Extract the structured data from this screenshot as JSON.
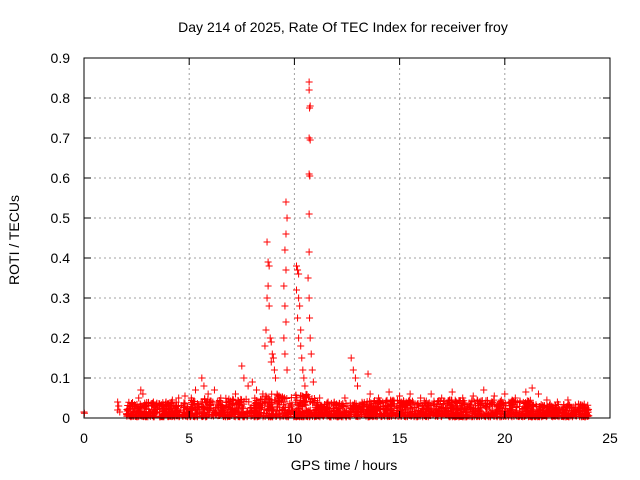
{
  "chart_data": {
    "type": "scatter",
    "title": "Day 214 of 2025, Rate Of TEC Index for receiver froy",
    "xlabel": "GPS time / hours",
    "ylabel": "ROTI / TECUs",
    "xlim": [
      0,
      25
    ],
    "ylim": [
      0,
      0.9
    ],
    "xticks": [
      0,
      5,
      10,
      15,
      20,
      25
    ],
    "yticks": [
      0,
      0.1,
      0.2,
      0.3,
      0.4,
      0.5,
      0.6,
      0.7,
      0.8,
      0.9
    ],
    "xtick_labels": [
      "0",
      "5",
      "10",
      "15",
      "20",
      "25"
    ],
    "ytick_labels": [
      "0",
      "0.1",
      "0.2",
      "0.3",
      "0.4",
      "0.5",
      "0.6",
      "0.7",
      "0.8",
      "0.9"
    ],
    "grid": true,
    "marker": "+",
    "color": "#ff0000",
    "series": [
      {
        "name": "ROTI",
        "points": [
          [
            0.0,
            0.015
          ],
          [
            0.02,
            0.012
          ],
          [
            1.6,
            0.04
          ],
          [
            1.6,
            0.02
          ],
          [
            1.65,
            0.03
          ],
          [
            1.7,
            0.015
          ],
          [
            2.1,
            0.02
          ],
          [
            2.2,
            0.03
          ],
          [
            2.5,
            0.025
          ],
          [
            2.6,
            0.05
          ],
          [
            2.7,
            0.07
          ],
          [
            2.8,
            0.06
          ],
          [
            3.0,
            0.03
          ],
          [
            3.3,
            0.04
          ],
          [
            3.6,
            0.035
          ],
          [
            3.9,
            0.04
          ],
          [
            4.2,
            0.045
          ],
          [
            4.5,
            0.05
          ],
          [
            4.8,
            0.055
          ],
          [
            5.1,
            0.05
          ],
          [
            5.3,
            0.07
          ],
          [
            5.6,
            0.1
          ],
          [
            5.7,
            0.08
          ],
          [
            5.9,
            0.06
          ],
          [
            6.2,
            0.07
          ],
          [
            6.5,
            0.05
          ],
          [
            6.9,
            0.04
          ],
          [
            7.2,
            0.06
          ],
          [
            7.5,
            0.13
          ],
          [
            7.6,
            0.1
          ],
          [
            7.8,
            0.08
          ],
          [
            8.0,
            0.09
          ],
          [
            8.2,
            0.07
          ],
          [
            8.5,
            0.06
          ],
          [
            8.6,
            0.18
          ],
          [
            8.7,
            0.44
          ],
          [
            8.75,
            0.39
          ],
          [
            8.8,
            0.38
          ],
          [
            8.75,
            0.33
          ],
          [
            8.7,
            0.3
          ],
          [
            8.8,
            0.28
          ],
          [
            8.65,
            0.22
          ],
          [
            8.85,
            0.2
          ],
          [
            8.9,
            0.19
          ],
          [
            8.95,
            0.16
          ],
          [
            9.0,
            0.15
          ],
          [
            9.05,
            0.12
          ],
          [
            9.1,
            0.1
          ],
          [
            8.9,
            0.14
          ],
          [
            9.6,
            0.54
          ],
          [
            9.65,
            0.5
          ],
          [
            9.6,
            0.46
          ],
          [
            9.55,
            0.42
          ],
          [
            9.6,
            0.37
          ],
          [
            9.5,
            0.33
          ],
          [
            9.55,
            0.28
          ],
          [
            9.6,
            0.24
          ],
          [
            9.5,
            0.2
          ],
          [
            9.55,
            0.16
          ],
          [
            9.65,
            0.12
          ],
          [
            10.1,
            0.38
          ],
          [
            10.15,
            0.37
          ],
          [
            10.2,
            0.36
          ],
          [
            10.1,
            0.32
          ],
          [
            10.2,
            0.3
          ],
          [
            10.25,
            0.28
          ],
          [
            10.15,
            0.25
          ],
          [
            10.3,
            0.22
          ],
          [
            10.2,
            0.2
          ],
          [
            10.3,
            0.18
          ],
          [
            10.35,
            0.15
          ],
          [
            10.4,
            0.12
          ],
          [
            10.45,
            0.1
          ],
          [
            10.5,
            0.08
          ],
          [
            10.7,
            0.84
          ],
          [
            10.7,
            0.82
          ],
          [
            10.75,
            0.78
          ],
          [
            10.72,
            0.775
          ],
          [
            10.7,
            0.7
          ],
          [
            10.75,
            0.695
          ],
          [
            10.7,
            0.61
          ],
          [
            10.73,
            0.605
          ],
          [
            10.7,
            0.51
          ],
          [
            10.7,
            0.415
          ],
          [
            10.65,
            0.35
          ],
          [
            10.7,
            0.3
          ],
          [
            10.72,
            0.25
          ],
          [
            10.75,
            0.2
          ],
          [
            10.8,
            0.16
          ],
          [
            10.85,
            0.12
          ],
          [
            10.9,
            0.09
          ],
          [
            11.2,
            0.05
          ],
          [
            11.6,
            0.04
          ],
          [
            12.0,
            0.035
          ],
          [
            12.4,
            0.05
          ],
          [
            12.7,
            0.15
          ],
          [
            12.8,
            0.12
          ],
          [
            12.9,
            0.1
          ],
          [
            13.0,
            0.08
          ],
          [
            13.5,
            0.11
          ],
          [
            13.6,
            0.06
          ],
          [
            14.0,
            0.05
          ],
          [
            14.5,
            0.065
          ],
          [
            15.0,
            0.055
          ],
          [
            15.5,
            0.06
          ],
          [
            16.0,
            0.05
          ],
          [
            16.5,
            0.06
          ],
          [
            17.0,
            0.05
          ],
          [
            17.5,
            0.065
          ],
          [
            18.0,
            0.05
          ],
          [
            18.5,
            0.055
          ],
          [
            19.0,
            0.07
          ],
          [
            19.5,
            0.055
          ],
          [
            20.0,
            0.06
          ],
          [
            20.5,
            0.05
          ],
          [
            21.0,
            0.065
          ],
          [
            21.3,
            0.075
          ],
          [
            21.6,
            0.06
          ],
          [
            22.0,
            0.045
          ],
          [
            22.5,
            0.04
          ],
          [
            23.0,
            0.045
          ],
          [
            23.5,
            0.035
          ],
          [
            23.9,
            0.025
          ],
          [
            23.95,
            0.02
          ]
        ],
        "band": {
          "segments": [
            {
              "x_start": 2.0,
              "x_end": 5.0,
              "y_min": 0.003,
              "y_max": 0.04
            },
            {
              "x_start": 5.0,
              "x_end": 8.5,
              "y_min": 0.003,
              "y_max": 0.05
            },
            {
              "x_start": 8.5,
              "x_end": 11.0,
              "y_min": 0.003,
              "y_max": 0.06
            },
            {
              "x_start": 11.0,
              "x_end": 13.0,
              "y_min": 0.003,
              "y_max": 0.04
            },
            {
              "x_start": 13.0,
              "x_end": 21.5,
              "y_min": 0.003,
              "y_max": 0.045
            },
            {
              "x_start": 21.5,
              "x_end": 24.0,
              "y_min": 0.003,
              "y_max": 0.035
            }
          ],
          "density_per_hour": 90
        }
      }
    ]
  }
}
